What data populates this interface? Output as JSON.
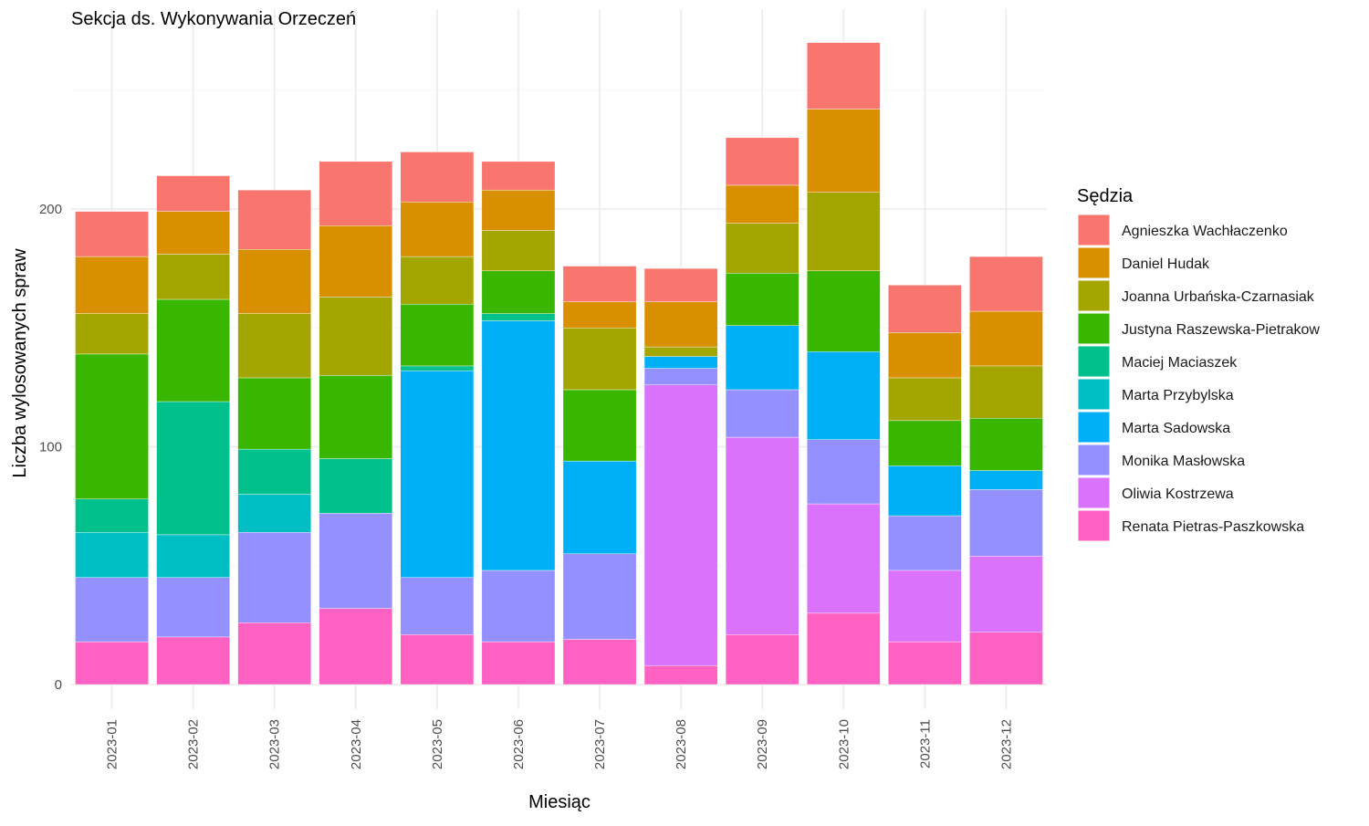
{
  "chart_data": {
    "type": "bar",
    "stacked": true,
    "title": "Sekcja ds. Wykonywania Orzeczeń",
    "xlabel": "Miesiąc",
    "ylabel": "Liczba wylosowanych spraw",
    "ylim": [
      0,
      270
    ],
    "yticks": [
      0,
      100,
      200
    ],
    "grid": true,
    "legend": {
      "title": "Sędzia",
      "position": "right"
    },
    "categories": [
      "2023-01",
      "2023-02",
      "2023-03",
      "2023-04",
      "2023-05",
      "2023-06",
      "2023-07",
      "2023-08",
      "2023-09",
      "2023-10",
      "2023-11",
      "2023-12"
    ],
    "series": [
      {
        "name": "Renata Pietras-Paszkowska",
        "color": "#FF61C3",
        "values": [
          18,
          20,
          26,
          32,
          21,
          18,
          19,
          8,
          21,
          30,
          18,
          22
        ]
      },
      {
        "name": "Oliwia Kostrzewa",
        "color": "#DB72FB",
        "values": [
          0,
          0,
          0,
          0,
          0,
          0,
          0,
          118,
          83,
          46,
          30,
          32
        ]
      },
      {
        "name": "Monika Masłowska",
        "color": "#9590FF",
        "values": [
          27,
          25,
          38,
          40,
          24,
          30,
          36,
          7,
          20,
          27,
          23,
          28
        ]
      },
      {
        "name": "Marta Sadowska",
        "color": "#00B0F6",
        "values": [
          0,
          0,
          0,
          0,
          87,
          105,
          39,
          5,
          27,
          37,
          21,
          8
        ]
      },
      {
        "name": "Marta Przybylska",
        "color": "#00BFC4",
        "values": [
          19,
          18,
          16,
          0,
          0,
          0,
          0,
          0,
          0,
          0,
          0,
          0
        ]
      },
      {
        "name": "Maciej Maciaszek",
        "color": "#00C08B",
        "values": [
          14,
          56,
          19,
          23,
          2,
          3,
          0,
          0,
          0,
          0,
          0,
          0
        ]
      },
      {
        "name": "Justyna Raszewska-Pietrakow",
        "color": "#39B600",
        "values": [
          61,
          43,
          30,
          35,
          26,
          18,
          30,
          0,
          22,
          34,
          19,
          22
        ]
      },
      {
        "name": "Joanna Urbańska-Czarnasiak",
        "color": "#A3A500",
        "values": [
          17,
          19,
          27,
          33,
          20,
          17,
          26,
          4,
          21,
          33,
          18,
          22
        ]
      },
      {
        "name": "Daniel Hudak",
        "color": "#D89000",
        "values": [
          24,
          18,
          27,
          30,
          23,
          17,
          11,
          19,
          16,
          35,
          19,
          23
        ]
      },
      {
        "name": "Agnieszka Wachłaczenko",
        "color": "#F8766D",
        "values": [
          19,
          15,
          25,
          27,
          21,
          12,
          15,
          14,
          20,
          28,
          20,
          23
        ]
      }
    ]
  }
}
